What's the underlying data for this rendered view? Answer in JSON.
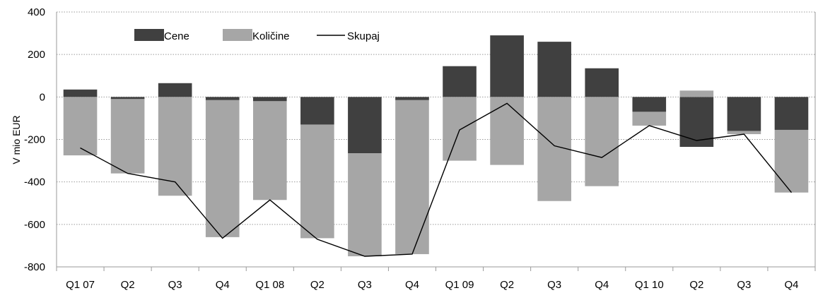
{
  "chart_data": {
    "type": "bar",
    "stacked": true,
    "categories": [
      "Q1 07",
      "Q2",
      "Q3",
      "Q4",
      "Q1 08",
      "Q2",
      "Q3",
      "Q4",
      "Q1 09",
      "Q2",
      "Q3",
      "Q4",
      "Q1 10",
      "Q2",
      "Q3",
      "Q4"
    ],
    "series": [
      {
        "name": "Cene",
        "kind": "bar",
        "color": "#404040",
        "values": [
          35,
          -10,
          65,
          -15,
          -20,
          -130,
          -265,
          -15,
          145,
          290,
          260,
          135,
          -70,
          -235,
          -160,
          -155
        ]
      },
      {
        "name": "Količine",
        "kind": "bar",
        "color": "#a6a6a6",
        "values": [
          -275,
          -350,
          -465,
          -645,
          -465,
          -535,
          -485,
          -725,
          -300,
          -320,
          -490,
          -420,
          -65,
          30,
          -15,
          -295
        ]
      },
      {
        "name": "Skupaj",
        "kind": "line",
        "color": "#000000",
        "values": [
          -240,
          -360,
          -400,
          -665,
          -485,
          -670,
          -750,
          -740,
          -155,
          -30,
          -230,
          -285,
          -135,
          -205,
          -175,
          -450
        ]
      }
    ],
    "ylabel": "V mio EUR",
    "ylim": [
      -800,
      400
    ],
    "yticks": [
      -800,
      -600,
      -400,
      -200,
      0,
      200,
      400
    ],
    "grid": true,
    "legend_position": "top-left"
  }
}
